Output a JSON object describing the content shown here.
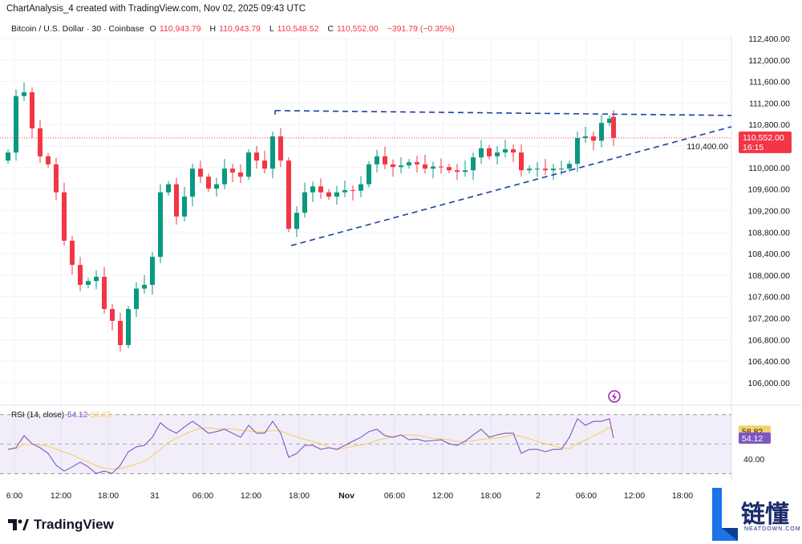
{
  "header": {
    "title": "ChartAnalysis_4 created with TradingView.com, Nov 02, 2025 09:43 UTC"
  },
  "legend": {
    "symbol": "Bitcoin / U.S. Dollar · 30 · Coinbase",
    "o_label": "O",
    "o": "110,943.79",
    "h_label": "H",
    "h": "110,943.79",
    "l_label": "L",
    "l": "110,548.52",
    "c_label": "C",
    "c": "110,552.00",
    "change": "−391.79 (−0.35%)"
  },
  "price_badge": {
    "price": "110,552.00",
    "countdown": "16:15"
  },
  "rsi": {
    "label": "RSI (14, close)",
    "value": "54.12",
    "ma": "58.82",
    "axis_label": "40.00"
  },
  "brand": {
    "logo": "TradingView"
  },
  "watermark": {
    "text": "链懂",
    "sub": "NEATDOWN.COM"
  },
  "colors": {
    "up": "#089981",
    "down": "#f23645",
    "rsi": "#7e57c2",
    "rsi_ma": "#f7d26a",
    "trendline": "#1e3fa8"
  },
  "chart_data": {
    "type": "candlestick",
    "interval": "30",
    "y_ticks": [
      106000,
      106400,
      106800,
      107200,
      107600,
      108000,
      108400,
      108800,
      109200,
      109600,
      110000,
      110400,
      110800,
      111200,
      111600,
      112000,
      112400
    ],
    "x_ticks": [
      "6:00",
      "12:00",
      "18:00",
      "31",
      "06:00",
      "12:00",
      "18:00",
      "Nov",
      "06:00",
      "12:00",
      "18:00",
      "2",
      "06:00",
      "12:00",
      "18:00"
    ],
    "ylim": [
      105700,
      112600
    ],
    "closes": [
      110280,
      111330,
      111400,
      110730,
      110210,
      110060,
      109540,
      108640,
      108190,
      107820,
      107890,
      107970,
      107370,
      107150,
      106700,
      107370,
      107750,
      107820,
      108340,
      109540,
      109690,
      109090,
      109460,
      109980,
      109830,
      109610,
      109690,
      109980,
      109910,
      109830,
      110280,
      110130,
      109980,
      110580,
      110130,
      108860,
      109160,
      109540,
      109650,
      109540,
      109460,
      109540,
      109580,
      109570,
      109690,
      110060,
      110210,
      110060,
      110010,
      110040,
      110100,
      110060,
      109980,
      110020,
      110010,
      109950,
      109920,
      109950,
      110190,
      110360,
      110210,
      110280,
      110340,
      110280,
      109950,
      109980,
      109980,
      109950,
      109980,
      109980,
      110070,
      110550,
      110580,
      110500,
      110830,
      110910,
      110552
    ],
    "last_open": 110943.79,
    "trendlines": [
      {
        "from": [
          33.3,
          111060
        ],
        "to": [
          90.2,
          110970
        ]
      },
      {
        "from": [
          35.3,
          108550
        ],
        "to": [
          90.2,
          110760
        ]
      }
    ],
    "rsi_values": [
      46.5,
      47.6,
      55.8,
      50.3,
      47.6,
      43.8,
      35.7,
      31.8,
      34.6,
      37.8,
      34.6,
      30.2,
      31.8,
      30.2,
      35.7,
      44.9,
      48.2,
      49.2,
      54.7,
      64.5,
      60.1,
      57.4,
      61.7,
      65.5,
      61.7,
      57.4,
      58.5,
      60.1,
      57.4,
      54.7,
      62.8,
      57.4,
      57.4,
      65.5,
      57.4,
      41.1,
      43.8,
      49.2,
      49.2,
      46.5,
      47.6,
      46.5,
      49.2,
      52.0,
      54.7,
      58.5,
      60.1,
      55.8,
      54.7,
      56.3,
      53.0,
      53.5,
      52.0,
      52.5,
      53.0,
      50.3,
      49.2,
      52.0,
      56.3,
      60.1,
      54.7,
      56.3,
      57.4,
      57.4,
      43.8,
      46.5,
      46.5,
      44.9,
      46.5,
      46.5,
      54.7,
      67.2,
      62.8,
      65.5,
      65.5,
      67.2,
      54.12
    ],
    "rsi_levels": [
      70,
      50,
      30
    ],
    "rsi_ticks": [
      40
    ]
  }
}
